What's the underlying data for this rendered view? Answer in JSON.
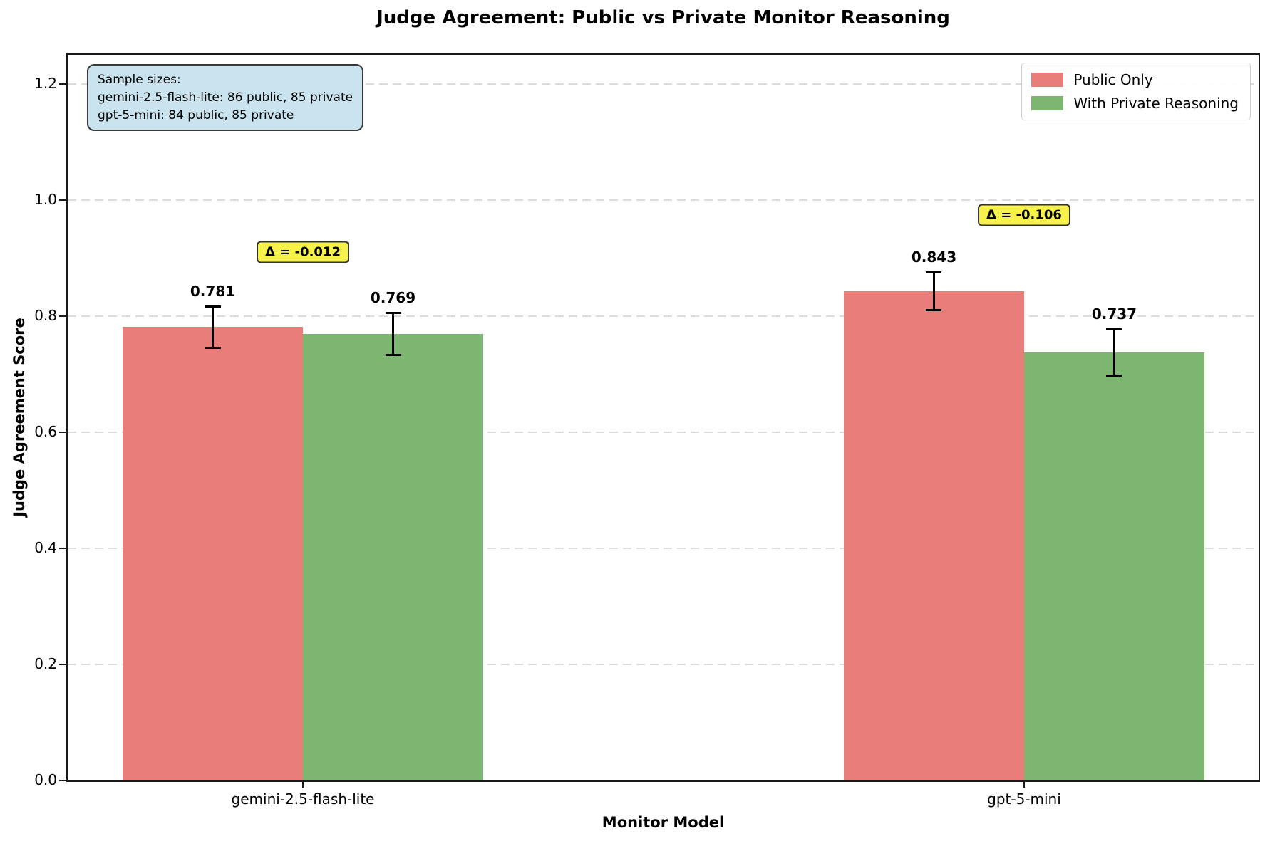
{
  "title": "Judge Agreement: Public vs Private Monitor Reasoning",
  "chart_data": {
    "type": "bar",
    "title": "Judge Agreement: Public vs Private Monitor Reasoning",
    "xlabel": "Monitor Model",
    "ylabel": "Judge Agreement Score",
    "categories": [
      "gemini-2.5-flash-lite",
      "gpt-5-mini"
    ],
    "series": [
      {
        "name": "Public Only",
        "color": "#e97d79",
        "values": [
          0.781,
          0.843
        ],
        "errors": [
          0.037,
          0.034
        ]
      },
      {
        "name": "With Private Reasoning",
        "color": "#7cb671",
        "values": [
          0.769,
          0.737
        ],
        "errors": [
          0.038,
          0.042
        ]
      }
    ],
    "ylim": [
      0,
      1.25
    ],
    "yticks": [
      0,
      0.2,
      0.4,
      0.6,
      0.8,
      1.0,
      1.2
    ],
    "grid": "horizontal-dashed",
    "legend_position": "upper-right",
    "annotations": [
      {
        "text": "Δ = -0.012",
        "group": 0,
        "y": 0.91
      },
      {
        "text": "Δ = -0.106",
        "group": 1,
        "y": 0.974
      }
    ],
    "annotation_style": {
      "bg": "#f7f24b",
      "border": "#333333"
    },
    "sample_box": {
      "bg": "#c9e4ef",
      "lines": [
        "Sample sizes:",
        "gemini-2.5-flash-lite: 86 public, 85 private",
        "gpt-5-mini: 84 public, 85 private"
      ]
    }
  }
}
